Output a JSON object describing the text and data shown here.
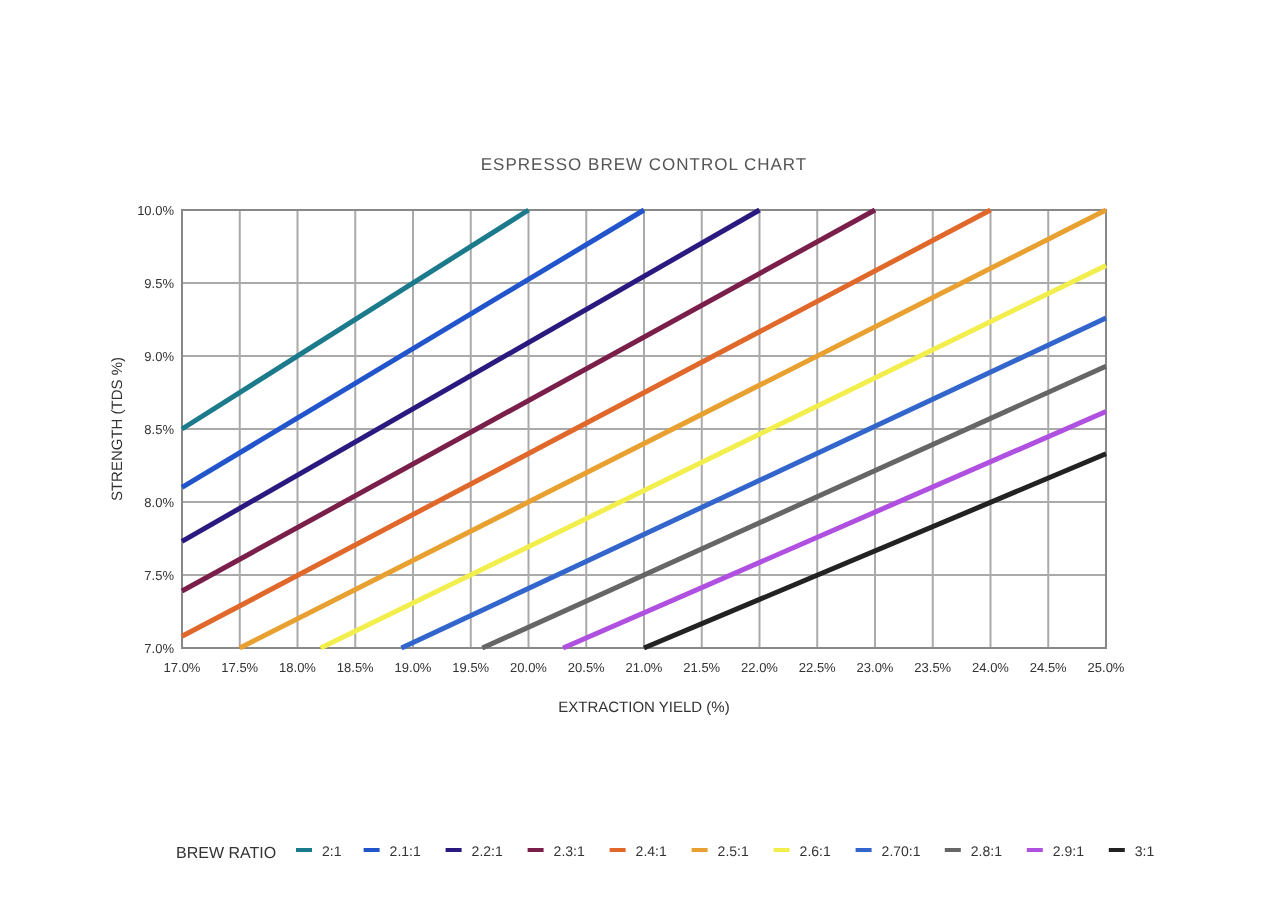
{
  "chart_data": {
    "type": "line",
    "title": "ESPRESSO BREW CONTROL CHART",
    "xlabel": "EXTRACTION YIELD (%)",
    "ylabel": "STRENGTH (TDS %)",
    "legend_title": "BREW RATIO",
    "legend": "bottom",
    "grid": true,
    "marker": "none",
    "line_style": "solid",
    "xlim": [
      17,
      25
    ],
    "ylim": [
      7,
      10
    ],
    "xticks": [
      {
        "value": 17,
        "label": "17.0%"
      },
      {
        "value": 17.5,
        "label": "17.5%"
      },
      {
        "value": 18,
        "label": "18.0%"
      },
      {
        "value": 18.5,
        "label": "18.5%"
      },
      {
        "value": 19,
        "label": "19.0%"
      },
      {
        "value": 19.5,
        "label": "19.5%"
      },
      {
        "value": 20,
        "label": "20.0%"
      },
      {
        "value": 20.5,
        "label": "20.5%"
      },
      {
        "value": 21,
        "label": "21.0%"
      },
      {
        "value": 21.5,
        "label": "21.5%"
      },
      {
        "value": 22,
        "label": "22.0%"
      },
      {
        "value": 22.5,
        "label": "22.5%"
      },
      {
        "value": 23,
        "label": "23.0%"
      },
      {
        "value": 23.5,
        "label": "23.5%"
      },
      {
        "value": 24,
        "label": "24.0%"
      },
      {
        "value": 24.5,
        "label": "24.5%"
      },
      {
        "value": 25,
        "label": "25.0%"
      }
    ],
    "yticks": [
      {
        "value": 7,
        "label": "7.0%"
      },
      {
        "value": 7.5,
        "label": "7.5%"
      },
      {
        "value": 8,
        "label": "8.0%"
      },
      {
        "value": 8.5,
        "label": "8.5%"
      },
      {
        "value": 9,
        "label": "9.0%"
      },
      {
        "value": 9.5,
        "label": "9.5%"
      },
      {
        "value": 10,
        "label": "10.0%"
      }
    ],
    "series": [
      {
        "name": "2:1",
        "color": "#1b7a8c",
        "x": [
          17,
          20
        ],
        "values": [
          8.5,
          10
        ]
      },
      {
        "name": "2.1:1",
        "color": "#2255cc",
        "x": [
          17,
          21
        ],
        "values": [
          8.1,
          10
        ]
      },
      {
        "name": "2.2:1",
        "color": "#2a1a80",
        "x": [
          17,
          22
        ],
        "values": [
          7.73,
          10
        ]
      },
      {
        "name": "2.3:1",
        "color": "#7a1f4a",
        "x": [
          17,
          23
        ],
        "values": [
          7.39,
          10
        ]
      },
      {
        "name": "2.4:1",
        "color": "#e0682a",
        "x": [
          17,
          24
        ],
        "values": [
          7.08,
          10
        ]
      },
      {
        "name": "2.5:1",
        "color": "#e8a030",
        "x": [
          17.5,
          25
        ],
        "values": [
          7,
          10
        ]
      },
      {
        "name": "2.6:1",
        "color": "#f2ee4c",
        "x": [
          18.2,
          25
        ],
        "values": [
          7,
          9.62
        ]
      },
      {
        "name": "2.70:1",
        "color": "#3366cc",
        "x": [
          18.9,
          25
        ],
        "values": [
          7,
          9.26
        ]
      },
      {
        "name": "2.8:1",
        "color": "#666666",
        "x": [
          19.6,
          25
        ],
        "values": [
          7,
          8.93
        ]
      },
      {
        "name": "2.9:1",
        "color": "#b050e0",
        "x": [
          20.3,
          25
        ],
        "values": [
          7,
          8.62
        ]
      },
      {
        "name": "3:1",
        "color": "#222222",
        "x": [
          21,
          25
        ],
        "values": [
          7,
          8.33
        ]
      }
    ]
  }
}
